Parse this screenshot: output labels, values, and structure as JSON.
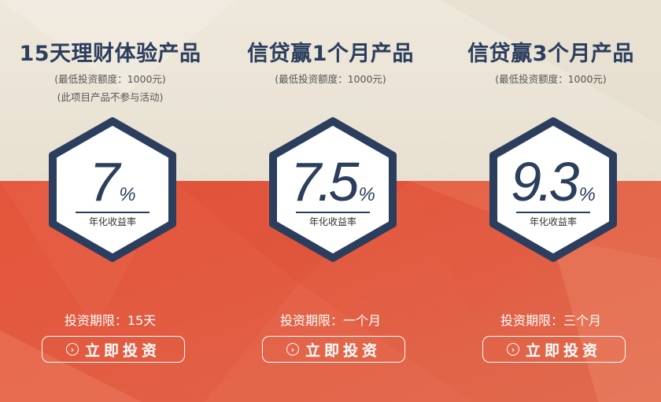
{
  "products": [
    {
      "title": "15天理财体验产品",
      "notes": [
        "(最低投资额度：1000元)",
        "(此项目产品不参与活动)"
      ],
      "rate_value": "7",
      "rate_unit": "%",
      "rate_label": "年化收益率",
      "term": "投资期限：15天",
      "button_label": "立即投资",
      "button_icon": "chevron-right-circle-icon"
    },
    {
      "title": "信贷赢1个月产品",
      "notes": [
        "(最低投资额度：1000元)"
      ],
      "rate_value": "7.5",
      "rate_unit": "%",
      "rate_label": "年化收益率",
      "term": "投资期限：一个月",
      "button_label": "立即投资",
      "button_icon": "chevron-right-circle-icon"
    },
    {
      "title": "信贷赢3个月产品",
      "notes": [
        "(最低投资额度：1000元)"
      ],
      "rate_value": "9.3",
      "rate_unit": "%",
      "rate_label": "年化收益率",
      "term": "投资期限：三个月",
      "button_label": "立即投资",
      "button_icon": "chevron-right-circle-icon"
    }
  ],
  "colors": {
    "title": "#2c3e5e",
    "hex_border": "#2c3e5e",
    "top_background": "#ece6d9",
    "bottom_background": "#e4553b",
    "button_text": "#ffffff"
  }
}
